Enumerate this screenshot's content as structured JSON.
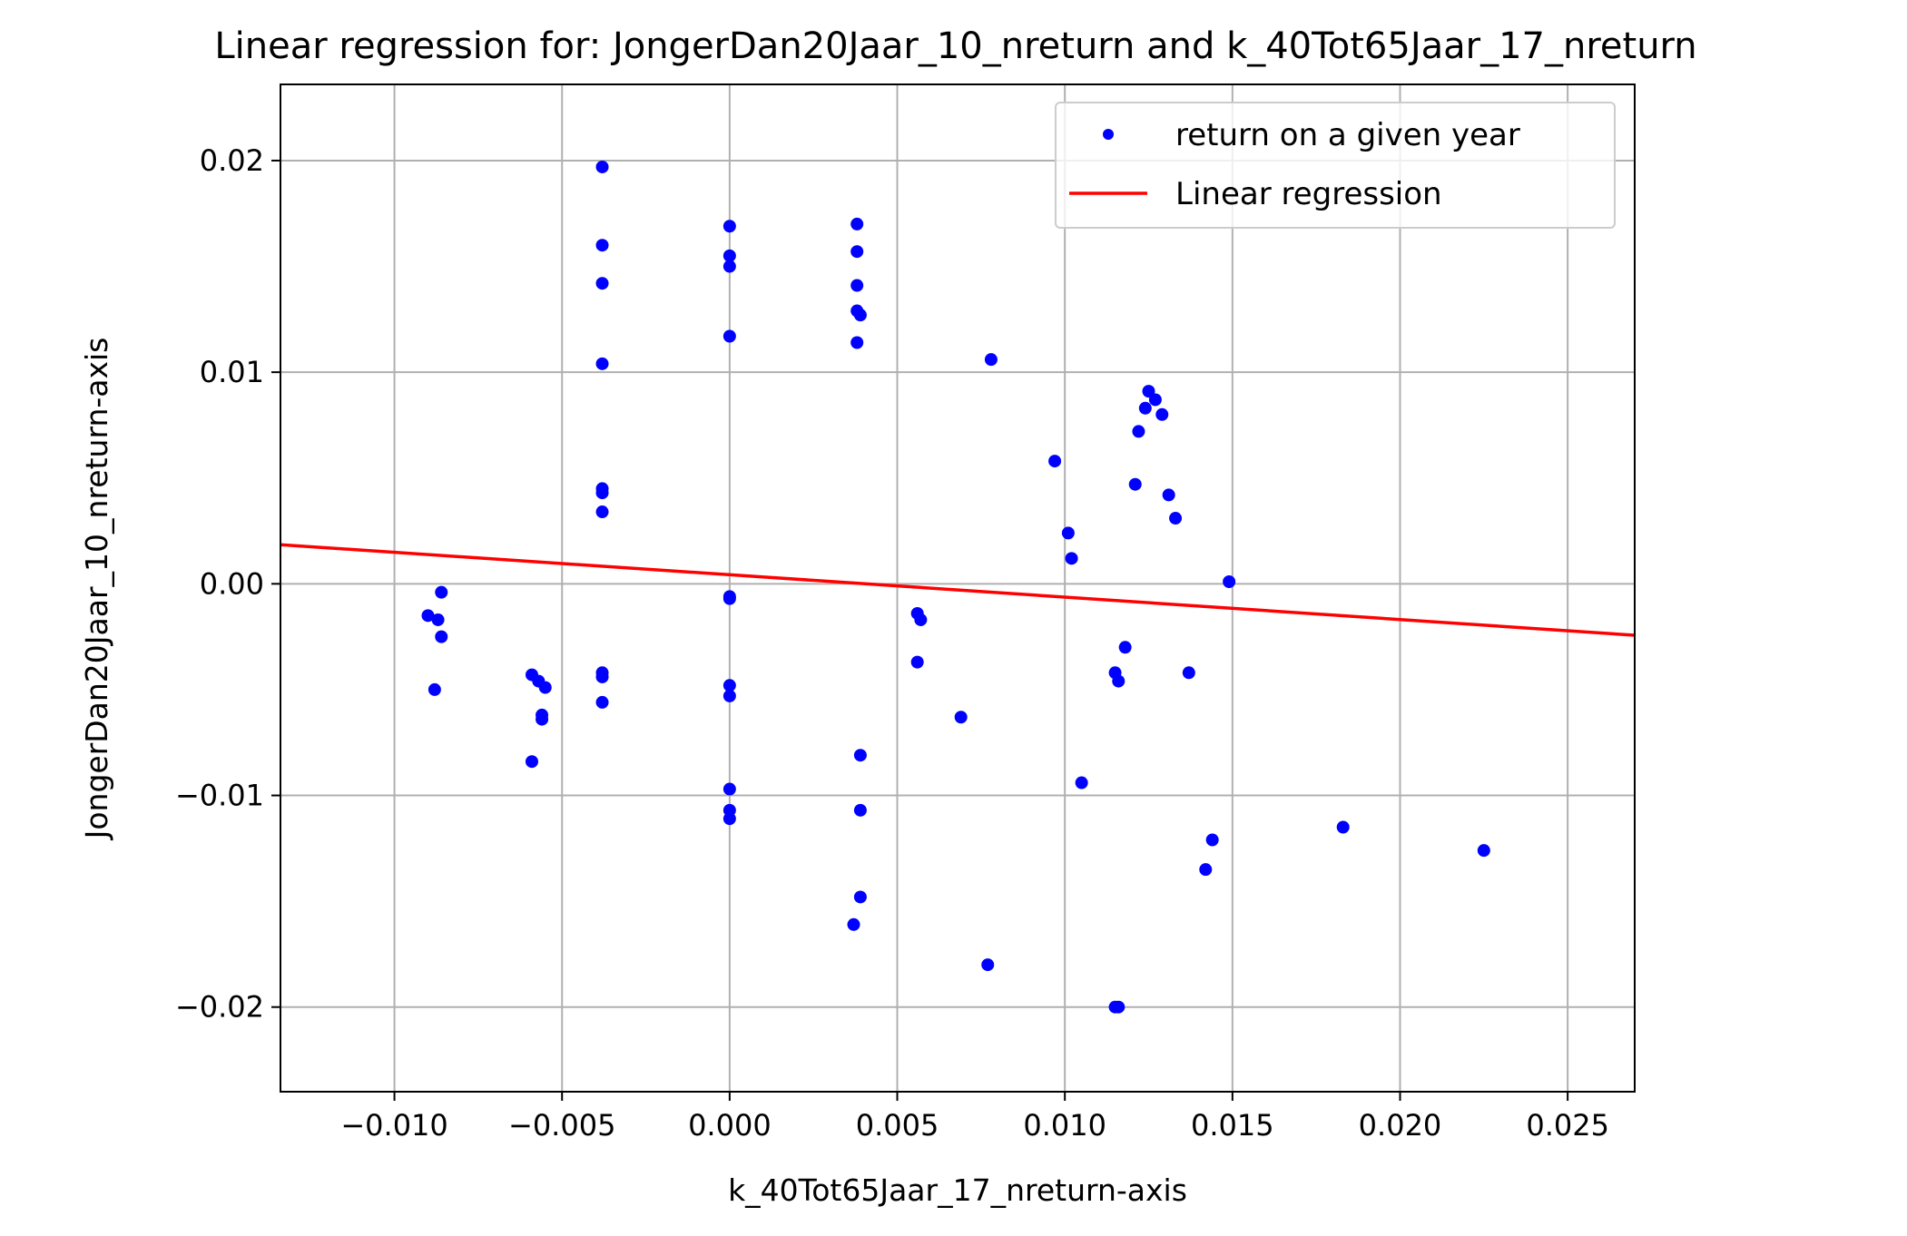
{
  "chart_data": {
    "type": "scatter",
    "title": "Linear regression for: JongerDan20Jaar_10_nreturn and k_40Tot65Jaar_17_nreturn",
    "xlabel": "k_40Tot65Jaar_17_nreturn-axis",
    "ylabel": "JongerDan20Jaar_10_nreturn-axis",
    "xlim": [
      -0.0134,
      0.027
    ],
    "ylim": [
      -0.024,
      0.0236
    ],
    "x_ticks": [
      -0.01,
      -0.005,
      0.0,
      0.005,
      0.01,
      0.015,
      0.02,
      0.025
    ],
    "x_tick_labels": [
      "−0.010",
      "−0.005",
      "0.000",
      "0.005",
      "0.010",
      "0.015",
      "0.020",
      "0.025"
    ],
    "y_ticks": [
      -0.02,
      -0.01,
      0.0,
      0.01,
      0.02
    ],
    "y_tick_labels": [
      "−0.02",
      "−0.01",
      "0.00",
      "0.01",
      "0.02"
    ],
    "grid": true,
    "legend_position": "top-right",
    "series": [
      {
        "name": "return on a given year",
        "kind": "scatter",
        "color": "#0000ff",
        "points": [
          [
            -0.0038,
            0.0197
          ],
          [
            -0.0038,
            0.016
          ],
          [
            -0.0038,
            0.0142
          ],
          [
            -0.0038,
            0.0104
          ],
          [
            -0.0038,
            0.0045
          ],
          [
            -0.0038,
            0.0043
          ],
          [
            -0.0038,
            0.0034
          ],
          [
            -0.0038,
            -0.0042
          ],
          [
            -0.0038,
            -0.0044
          ],
          [
            -0.0038,
            -0.0056
          ],
          [
            0.0,
            0.0169
          ],
          [
            0.0,
            0.0155
          ],
          [
            0.0,
            0.015
          ],
          [
            0.0,
            0.0117
          ],
          [
            0.0,
            -0.0006
          ],
          [
            0.0,
            -0.0007
          ],
          [
            0.0,
            -0.0048
          ],
          [
            0.0,
            -0.0053
          ],
          [
            0.0,
            -0.0097
          ],
          [
            0.0,
            -0.0107
          ],
          [
            0.0,
            -0.0111
          ],
          [
            0.0038,
            0.017
          ],
          [
            0.0038,
            0.0157
          ],
          [
            0.0038,
            0.0141
          ],
          [
            0.0038,
            0.0129
          ],
          [
            0.0039,
            0.0127
          ],
          [
            0.0038,
            0.0114
          ],
          [
            0.0039,
            -0.0081
          ],
          [
            0.0039,
            -0.0107
          ],
          [
            0.0039,
            -0.0148
          ],
          [
            0.0037,
            -0.0161
          ],
          [
            -0.009,
            -0.0015
          ],
          [
            -0.0087,
            -0.0017
          ],
          [
            -0.0086,
            -0.0004
          ],
          [
            -0.0086,
            -0.0025
          ],
          [
            -0.0088,
            -0.005
          ],
          [
            -0.0059,
            -0.0043
          ],
          [
            -0.0057,
            -0.0046
          ],
          [
            -0.0055,
            -0.0049
          ],
          [
            -0.0056,
            -0.0062
          ],
          [
            -0.0056,
            -0.0064
          ],
          [
            -0.0059,
            -0.0084
          ],
          [
            0.0056,
            -0.0014
          ],
          [
            0.0057,
            -0.0017
          ],
          [
            0.0056,
            -0.0037
          ],
          [
            0.0069,
            -0.0063
          ],
          [
            0.0078,
            0.0106
          ],
          [
            0.0077,
            -0.018
          ],
          [
            0.0097,
            0.0058
          ],
          [
            0.0101,
            0.0024
          ],
          [
            0.0102,
            0.0012
          ],
          [
            0.0105,
            -0.0094
          ],
          [
            0.0115,
            -0.0042
          ],
          [
            0.0116,
            -0.0046
          ],
          [
            0.0118,
            -0.003
          ],
          [
            0.0115,
            -0.02
          ],
          [
            0.0116,
            -0.02
          ],
          [
            0.0121,
            0.0047
          ],
          [
            0.0122,
            0.0072
          ],
          [
            0.0124,
            0.0083
          ],
          [
            0.0125,
            0.0091
          ],
          [
            0.0127,
            0.0087
          ],
          [
            0.0129,
            0.008
          ],
          [
            0.0131,
            0.0042
          ],
          [
            0.0133,
            0.0031
          ],
          [
            0.0137,
            -0.0042
          ],
          [
            0.0142,
            -0.0135
          ],
          [
            0.0144,
            -0.0121
          ],
          [
            0.0149,
            0.0001
          ],
          [
            0.0183,
            -0.0115
          ],
          [
            0.0225,
            -0.0126
          ]
        ]
      },
      {
        "name": "Linear regression",
        "kind": "line",
        "color": "#ff0000",
        "points": [
          [
            -0.0134,
            0.00185
          ],
          [
            0.027,
            -0.00243
          ]
        ]
      }
    ]
  }
}
